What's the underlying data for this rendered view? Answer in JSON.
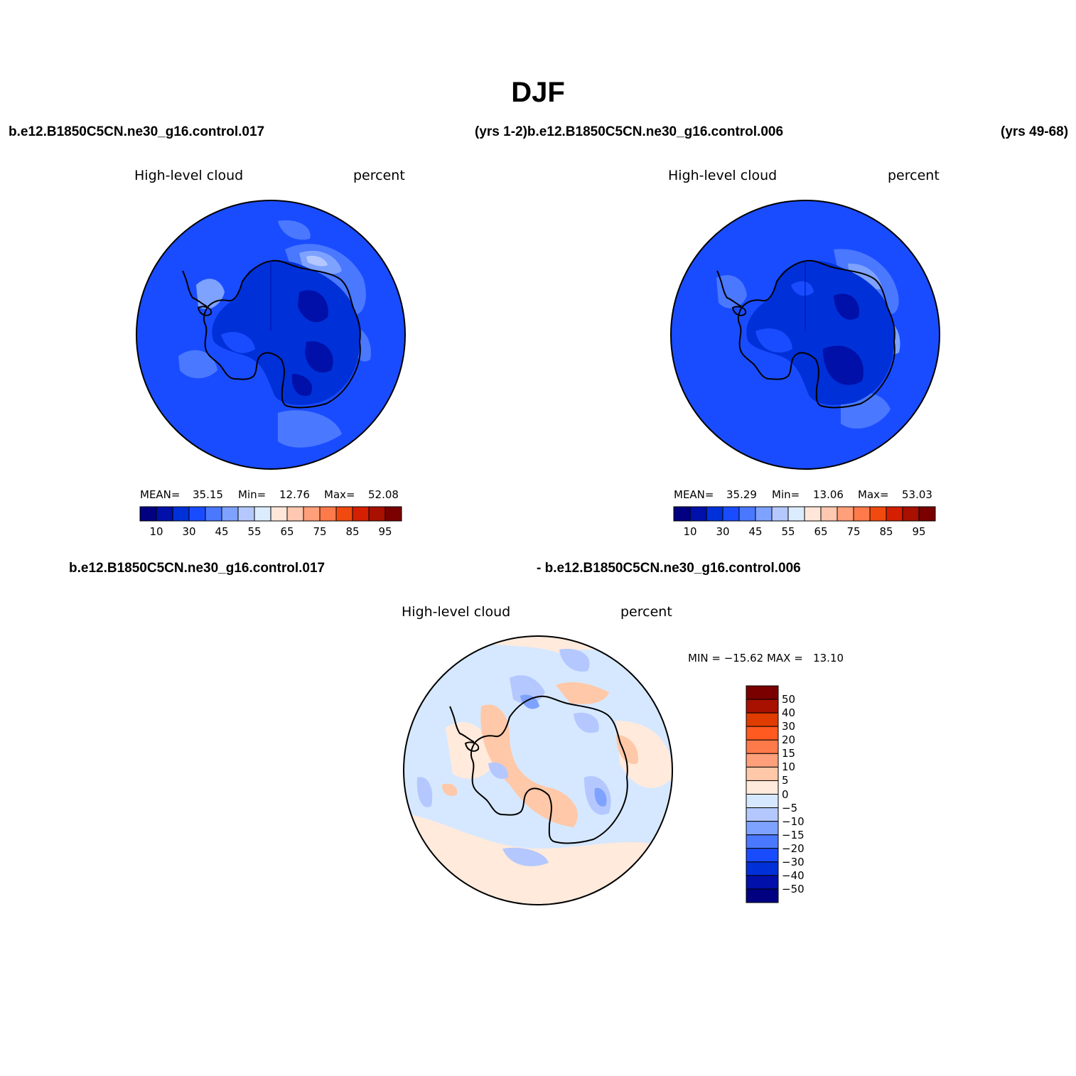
{
  "title": "DJF",
  "case_top_left": "b.e12.B1850C5CN.ne30_g16.control.017",
  "case_top_mid": "(yrs 1-2)b.e12.B1850C5CN.ne30_g16.control.006",
  "case_top_right": "(yrs 49-68)",
  "case_diff_left": "b.e12.B1850C5CN.ne30_g16.control.017",
  "case_diff_mid": "- b.e12.B1850C5CN.ne30_g16.control.006",
  "colors": {
    "abs_levels": [
      "#000080",
      "#0010a8",
      "#0030d8",
      "#1a4cff",
      "#4a78ff",
      "#7ea2ff",
      "#b4c8ff",
      "#dcecff",
      "#ffe6d8",
      "#ffc8b0",
      "#ffa07a",
      "#ff7a4a",
      "#f04a10",
      "#d42000",
      "#a81000",
      "#7a0000"
    ],
    "diff_levels": [
      "#000080",
      "#0010a8",
      "#0030d8",
      "#1a4cff",
      "#4a78ff",
      "#7ea2ff",
      "#b4c8ff",
      "#d6e8ff",
      "#ffeadc",
      "#ffc8a8",
      "#ffa07a",
      "#ff7a4a",
      "#ff5a20",
      "#e03c00",
      "#a81000",
      "#7a0000"
    ],
    "coast": "#000000"
  },
  "panels": [
    {
      "variable": "High-level cloud",
      "units": "percent",
      "stats": {
        "mean_label": "MEAN=",
        "mean": "35.15",
        "min_label": "Min=",
        "min": "12.76",
        "max_label": "Max=",
        "max": "52.08"
      },
      "colorbar_ticks": [
        "10",
        "30",
        "45",
        "55",
        "65",
        "75",
        "85",
        "95"
      ]
    },
    {
      "variable": "High-level cloud",
      "units": "percent",
      "stats": {
        "mean_label": "MEAN=",
        "mean": "35.29",
        "min_label": "Min=",
        "min": "13.06",
        "max_label": "Max=",
        "max": "53.03"
      },
      "colorbar_ticks": [
        "10",
        "30",
        "45",
        "55",
        "65",
        "75",
        "85",
        "95"
      ]
    },
    {
      "variable": "High-level cloud",
      "units": "percent",
      "minmax": "MIN = −15.62 MAX =   13.10",
      "colorbar_ticks": [
        "50",
        "40",
        "30",
        "20",
        "15",
        "10",
        "5",
        "0",
        "−5",
        "−10",
        "−15",
        "−20",
        "−30",
        "−40",
        "−50"
      ]
    }
  ]
}
